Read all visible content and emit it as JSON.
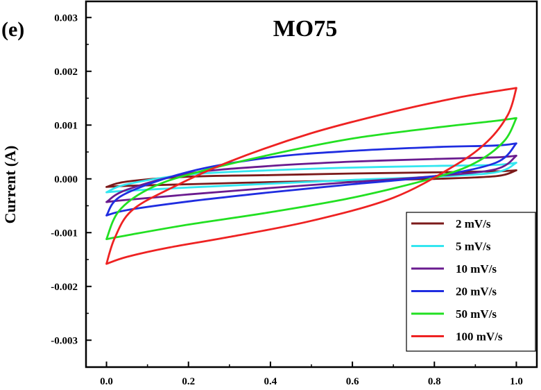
{
  "panel_label": "(e)",
  "chart_data": {
    "type": "line",
    "title": "MO75",
    "xlabel": "",
    "ylabel": "Current (A)",
    "xlim": [
      -0.05,
      1.05
    ],
    "ylim": [
      -0.0035,
      0.0033
    ],
    "x_ticks": [
      0.0,
      0.2,
      0.4,
      0.6,
      0.8,
      1.0
    ],
    "x_tick_labels": [
      "0.0",
      "0.2",
      "0.4",
      "0.6",
      "0.8",
      "1.0"
    ],
    "y_ticks": [
      -0.003,
      -0.002,
      -0.001,
      0.0,
      0.001,
      0.002,
      0.003
    ],
    "y_tick_labels": [
      "-0.003",
      "-0.002",
      "-0.001",
      "0.000",
      "0.001",
      "0.002",
      "0.003"
    ],
    "grid": false,
    "legend_position": "bottom-right",
    "series": [
      {
        "name": "2 mV/s",
        "color": "#7b1a1a",
        "upper": [
          [
            0.0,
            -0.00015
          ],
          [
            0.05,
            -5e-05
          ],
          [
            0.2,
            4e-05
          ],
          [
            0.4,
            7e-05
          ],
          [
            0.6,
            0.0001
          ],
          [
            0.8,
            0.00012
          ],
          [
            0.95,
            0.00014
          ],
          [
            1.0,
            0.00016
          ]
        ],
        "lower": [
          [
            1.0,
            0.00016
          ],
          [
            0.95,
            5e-05
          ],
          [
            0.8,
            0.0
          ],
          [
            0.6,
            -3e-05
          ],
          [
            0.4,
            -6e-05
          ],
          [
            0.2,
            -0.0001
          ],
          [
            0.05,
            -0.00013
          ],
          [
            0.0,
            -0.00015
          ]
        ]
      },
      {
        "name": "5 mV/s",
        "color": "#33e6f0",
        "upper": [
          [
            0.0,
            -0.00025
          ],
          [
            0.05,
            -0.0001
          ],
          [
            0.2,
            8e-05
          ],
          [
            0.4,
            0.00016
          ],
          [
            0.6,
            0.00021
          ],
          [
            0.8,
            0.00024
          ],
          [
            0.95,
            0.00026
          ],
          [
            1.0,
            0.0003
          ]
        ],
        "lower": [
          [
            1.0,
            0.0003
          ],
          [
            0.95,
            0.00012
          ],
          [
            0.8,
            4e-05
          ],
          [
            0.6,
            -2e-05
          ],
          [
            0.4,
            -9e-05
          ],
          [
            0.2,
            -0.00016
          ],
          [
            0.05,
            -0.00022
          ],
          [
            0.0,
            -0.00025
          ]
        ]
      },
      {
        "name": "10 mV/s",
        "color": "#6a1b8f",
        "upper": [
          [
            0.0,
            -0.00043
          ],
          [
            0.05,
            -0.0002
          ],
          [
            0.2,
            0.0001
          ],
          [
            0.4,
            0.00024
          ],
          [
            0.6,
            0.00032
          ],
          [
            0.8,
            0.00037
          ],
          [
            0.95,
            0.0004
          ],
          [
            1.0,
            0.00043
          ]
        ],
        "lower": [
          [
            1.0,
            0.00043
          ],
          [
            0.95,
            0.00018
          ],
          [
            0.8,
            5e-05
          ],
          [
            0.6,
            -6e-05
          ],
          [
            0.4,
            -0.00017
          ],
          [
            0.2,
            -0.00029
          ],
          [
            0.05,
            -0.00039
          ],
          [
            0.0,
            -0.00043
          ]
        ]
      },
      {
        "name": "20 mV/s",
        "color": "#1f2de0",
        "upper": [
          [
            0.0,
            -0.00068
          ],
          [
            0.04,
            -0.0003
          ],
          [
            0.2,
            0.00013
          ],
          [
            0.4,
            0.0004
          ],
          [
            0.6,
            0.00052
          ],
          [
            0.8,
            0.00059
          ],
          [
            0.95,
            0.00062
          ],
          [
            1.0,
            0.00066
          ]
        ],
        "lower": [
          [
            1.0,
            0.00066
          ],
          [
            0.95,
            0.0003
          ],
          [
            0.8,
            5e-05
          ],
          [
            0.6,
            -0.0001
          ],
          [
            0.4,
            -0.00025
          ],
          [
            0.2,
            -0.00042
          ],
          [
            0.05,
            -0.00058
          ],
          [
            0.0,
            -0.00068
          ]
        ]
      },
      {
        "name": "50 mV/s",
        "color": "#22e022",
        "upper": [
          [
            0.0,
            -0.00112
          ],
          [
            0.03,
            -0.0006
          ],
          [
            0.1,
            -0.0002
          ],
          [
            0.2,
            8e-05
          ],
          [
            0.4,
            0.00045
          ],
          [
            0.6,
            0.00075
          ],
          [
            0.8,
            0.00095
          ],
          [
            0.95,
            0.00108
          ],
          [
            1.0,
            0.00113
          ]
        ],
        "lower": [
          [
            1.0,
            0.00113
          ],
          [
            0.97,
            0.0007
          ],
          [
            0.9,
            0.0003
          ],
          [
            0.8,
            2e-05
          ],
          [
            0.6,
            -0.00035
          ],
          [
            0.4,
            -0.00062
          ],
          [
            0.2,
            -0.00085
          ],
          [
            0.05,
            -0.00105
          ],
          [
            0.0,
            -0.00112
          ]
        ]
      },
      {
        "name": "100 mV/s",
        "color": "#ee2222",
        "upper": [
          [
            0.0,
            -0.00158
          ],
          [
            0.02,
            -0.0011
          ],
          [
            0.06,
            -0.0006
          ],
          [
            0.15,
            -0.0002
          ],
          [
            0.3,
            0.00032
          ],
          [
            0.5,
            0.00085
          ],
          [
            0.7,
            0.00125
          ],
          [
            0.85,
            0.0015
          ],
          [
            0.95,
            0.00163
          ],
          [
            1.0,
            0.00169
          ]
        ],
        "lower": [
          [
            1.0,
            0.00169
          ],
          [
            0.98,
            0.0012
          ],
          [
            0.93,
            0.0007
          ],
          [
            0.85,
            0.00025
          ],
          [
            0.7,
            -0.00035
          ],
          [
            0.5,
            -0.00078
          ],
          [
            0.3,
            -0.00108
          ],
          [
            0.15,
            -0.00128
          ],
          [
            0.05,
            -0.00145
          ],
          [
            0.0,
            -0.00158
          ]
        ]
      }
    ]
  }
}
